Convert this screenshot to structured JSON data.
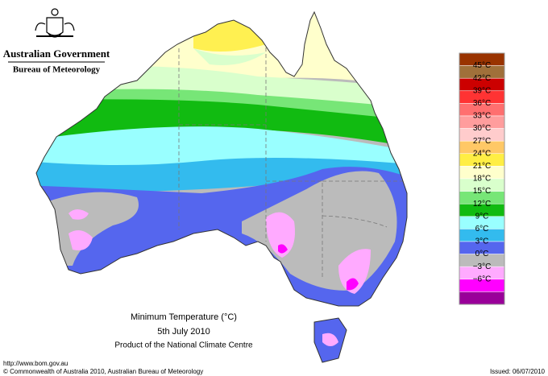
{
  "header": {
    "title": "Australian Government",
    "subtitle": "Bureau of Meteorology"
  },
  "caption": {
    "title": "Minimum Temperature (°C)",
    "date": "5th July 2010",
    "product": "Product of the National Climate Centre"
  },
  "legend": {
    "labels": [
      "45°C",
      "42°C",
      "39°C",
      "36°C",
      "33°C",
      "30°C",
      "27°C",
      "24°C",
      "21°C",
      "18°C",
      "15°C",
      "12°C",
      "9°C",
      "6°C",
      "3°C",
      "0°C",
      "−3°C",
      "−6°C"
    ],
    "colors": [
      "#993300",
      "#a0703a",
      "#cc0000",
      "#ff3333",
      "#ff6f6f",
      "#ff9d9d",
      "#ffcccc",
      "#ffc866",
      "#ffee44",
      "#ffffcc",
      "#d9ffcc",
      "#77e677",
      "#11bb11",
      "#99ffff",
      "#33bbee",
      "#5566ee",
      "#bbbbbb",
      "#ffaaff",
      "#ff00ff",
      "#990099"
    ]
  },
  "footer": {
    "url": "http://www.bom.gov.au",
    "copyright": "© Commonwealth of Australia 2010, Australian Bureau of Meteorology",
    "issued": "Issued: 06/07/2010"
  }
}
